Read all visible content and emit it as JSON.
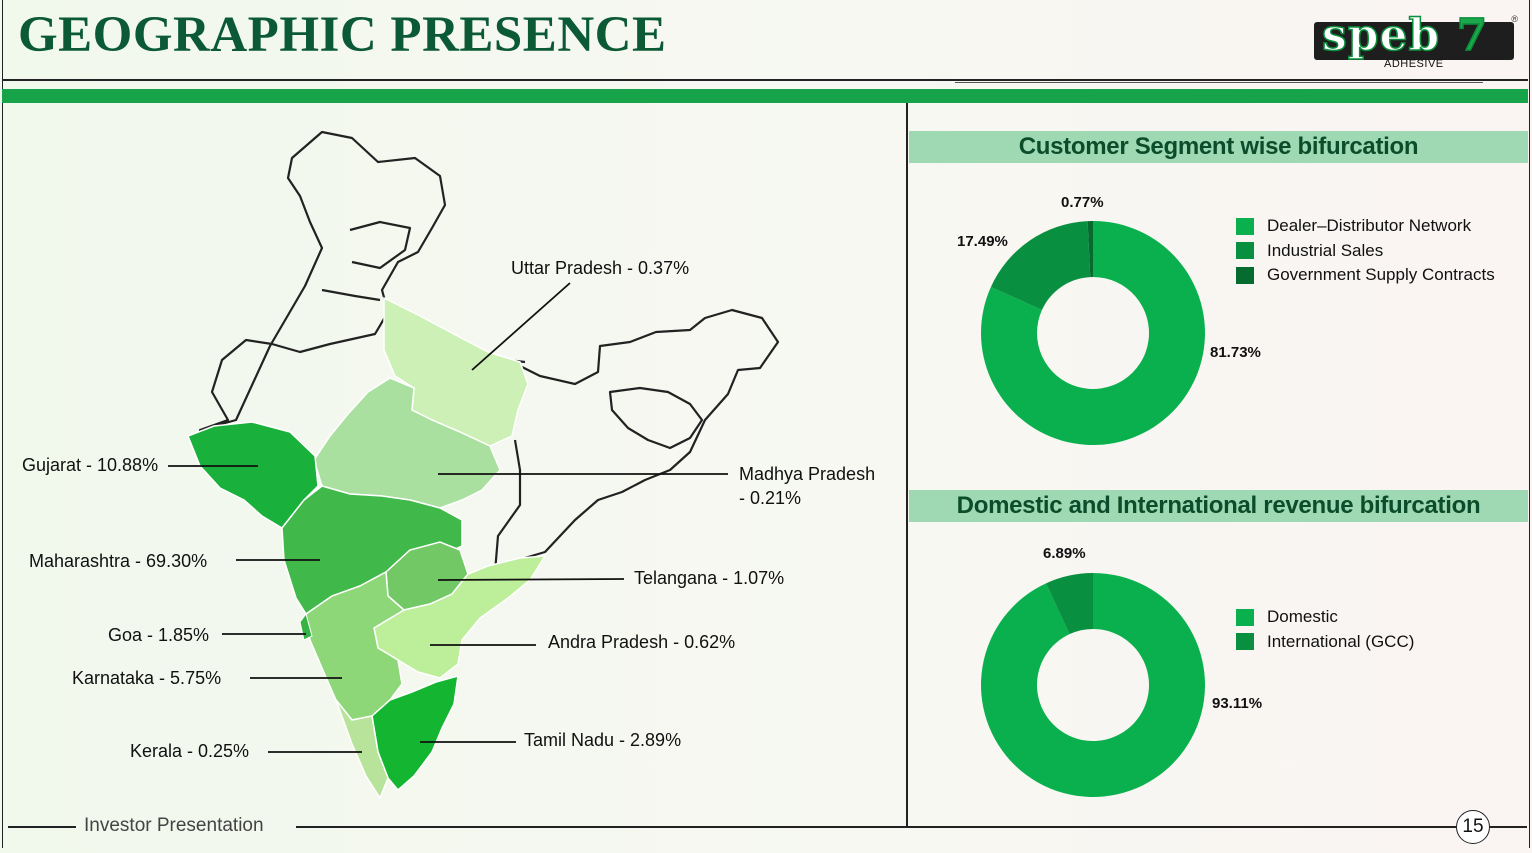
{
  "title": "GEOGRAPHIC PRESENCE",
  "logo": {
    "brand": "speb",
    "mark": "7",
    "sub": "ADHESIVE",
    "reg": "®"
  },
  "footer": {
    "text": "Investor Presentation",
    "page": "15"
  },
  "map": {
    "states": [
      {
        "label": "Uttar Pradesh - 0.37%"
      },
      {
        "label": "Gujarat - 10.88%"
      },
      {
        "label": "Madhya Pradesh",
        "label2": "- 0.21%"
      },
      {
        "label": "Maharashtra - 69.30%"
      },
      {
        "label": "Telangana - 1.07%"
      },
      {
        "label": "Goa - 1.85%"
      },
      {
        "label": "Andra Pradesh - 0.62%"
      },
      {
        "label": "Karnataka - 5.75%"
      },
      {
        "label": "Tamil Nadu - 2.89%"
      },
      {
        "label": "Kerala - 0.25%"
      }
    ]
  },
  "chart_data": [
    {
      "type": "pie",
      "title": "Customer Segment wise bifurcation",
      "categories": [
        "Dealer–Distributor Network",
        "Industrial Sales",
        "Government Supply Contracts"
      ],
      "values": [
        81.73,
        17.49,
        0.77
      ],
      "labels": [
        "81.73%",
        "17.49%",
        "0.77%"
      ],
      "colors": [
        "#0ab04d",
        "#089040",
        "#066b2e"
      ],
      "legend": "right"
    },
    {
      "type": "pie",
      "title": "Domestic and International revenue bifurcation",
      "categories": [
        "Domestic",
        "International (GCC)"
      ],
      "values": [
        93.11,
        6.89
      ],
      "labels": [
        "93.11%",
        "6.89%"
      ],
      "colors": [
        "#0ab04d",
        "#089040"
      ],
      "legend": "right"
    }
  ]
}
